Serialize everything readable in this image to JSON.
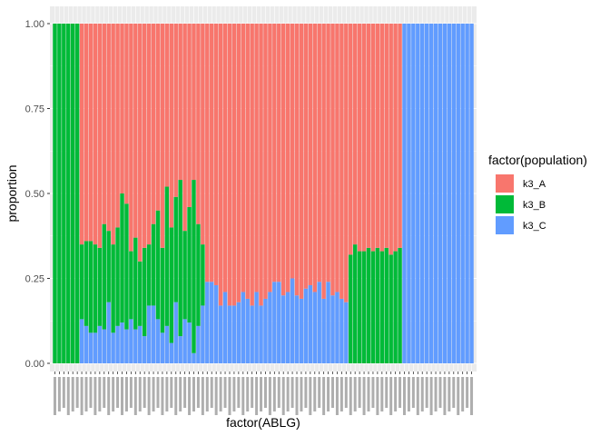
{
  "chart_data": {
    "type": "bar",
    "stacked": true,
    "xlabel": "factor(ABLG)",
    "ylabel": "proportion",
    "ylim": [
      0,
      1
    ],
    "yticks": [
      "0.00",
      "0.25",
      "0.50",
      "0.75",
      "1.00"
    ],
    "grid": true,
    "legend_position": "right",
    "legend_title": "factor(population)",
    "note": "x-axis category tick labels are illegible (overlapping) in the original; values estimated from bar heights",
    "series": [
      {
        "name": "k3_A",
        "color": "#F8766D",
        "values": [
          0,
          0,
          0,
          0,
          0,
          0,
          0.65,
          0.64,
          0.64,
          0.65,
          0.66,
          0.59,
          0.61,
          0.65,
          0.6,
          0.5,
          0.53,
          0.67,
          0.63,
          0.7,
          0.66,
          0.65,
          0.59,
          0.55,
          0.66,
          0.48,
          0.6,
          0.51,
          0.46,
          0.61,
          0.54,
          0.46,
          0.59,
          0.65,
          0.76,
          0.76,
          0.77,
          0.83,
          0.79,
          0.83,
          0.83,
          0.82,
          0.79,
          0.81,
          0.83,
          0.79,
          0.83,
          0.81,
          0.79,
          0.76,
          0.76,
          0.8,
          0.79,
          0.75,
          0.8,
          0.81,
          0.78,
          0.77,
          0.79,
          0.76,
          0.81,
          0.76,
          0.8,
          0.79,
          0.81,
          0.82,
          0.68,
          0.65,
          0.67,
          0.67,
          0.66,
          0.67,
          0.66,
          0.67,
          0.66,
          0.68,
          0.67,
          0.66,
          0,
          0,
          0,
          0,
          0,
          0,
          0,
          0,
          0,
          0,
          0,
          0,
          0,
          0,
          0,
          0
        ]
      },
      {
        "name": "k3_B",
        "color": "#00BA38",
        "values": [
          1,
          1,
          1,
          1,
          1,
          1,
          0.22,
          0.25,
          0.27,
          0.26,
          0.23,
          0.31,
          0.21,
          0.26,
          0.29,
          0.38,
          0.37,
          0.2,
          0.27,
          0.19,
          0.26,
          0.18,
          0.24,
          0.32,
          0.25,
          0.41,
          0.34,
          0.31,
          0.46,
          0.26,
          0.34,
          0.51,
          0.3,
          0.18,
          0,
          0,
          0,
          0,
          0,
          0,
          0,
          0,
          0,
          0,
          0,
          0,
          0,
          0,
          0,
          0,
          0,
          0,
          0,
          0,
          0,
          0,
          0,
          0,
          0,
          0,
          0,
          0,
          0,
          0,
          0,
          0,
          0.32,
          0.35,
          0.33,
          0.33,
          0.34,
          0.33,
          0.34,
          0.33,
          0.34,
          0.32,
          0.33,
          0.34,
          0,
          0,
          0,
          0,
          0,
          0,
          0,
          0,
          0,
          0,
          0,
          0,
          0,
          0,
          0,
          0
        ]
      },
      {
        "name": "k3_C",
        "color": "#619CFF",
        "values": [
          0,
          0,
          0,
          0,
          0,
          0,
          0.13,
          0.11,
          0.09,
          0.09,
          0.11,
          0.1,
          0.18,
          0.09,
          0.11,
          0.12,
          0.1,
          0.13,
          0.1,
          0.11,
          0.08,
          0.17,
          0.17,
          0.13,
          0.09,
          0.11,
          0.06,
          0.18,
          0.08,
          0.13,
          0.12,
          0.03,
          0.11,
          0.17,
          0.24,
          0.24,
          0.23,
          0.17,
          0.21,
          0.17,
          0.17,
          0.18,
          0.21,
          0.19,
          0.17,
          0.21,
          0.17,
          0.19,
          0.21,
          0.24,
          0.24,
          0.2,
          0.21,
          0.25,
          0.2,
          0.19,
          0.22,
          0.23,
          0.21,
          0.24,
          0.19,
          0.24,
          0.2,
          0.21,
          0.19,
          0.18,
          0,
          0,
          0,
          0,
          0,
          0,
          0,
          0,
          0,
          0,
          0,
          0,
          1,
          1,
          1,
          1,
          1,
          1,
          1,
          1,
          1,
          1,
          1,
          1,
          1,
          1,
          1,
          1
        ]
      }
    ]
  }
}
